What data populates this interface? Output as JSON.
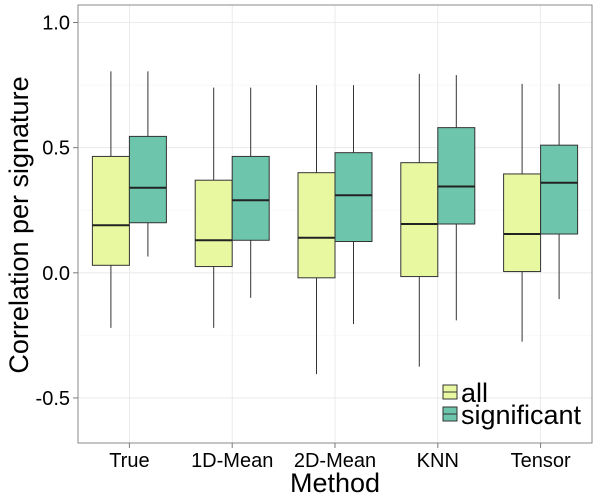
{
  "chart_data": {
    "type": "boxplot",
    "title": "",
    "xlabel": "Method",
    "ylabel": "Correlation per signature",
    "ylim": [
      -0.68,
      1.07
    ],
    "yticks": [
      -0.5,
      0.0,
      0.5,
      1.0
    ],
    "ytick_labels": [
      "-0.5",
      "0.0",
      "0.5",
      "1.0"
    ],
    "grid": true,
    "legend_position": "bottom-right inside",
    "categories": [
      "True",
      "1D-Mean",
      "2D-Mean",
      "KNN",
      "Tensor"
    ],
    "series": [
      {
        "name": "all",
        "color": "#e8f8a0",
        "boxes": [
          {
            "category": "True",
            "whisker_low": -0.22,
            "q1": 0.03,
            "median": 0.19,
            "q3": 0.465,
            "whisker_high": 0.805
          },
          {
            "category": "1D-Mean",
            "whisker_low": -0.22,
            "q1": 0.025,
            "median": 0.13,
            "q3": 0.37,
            "whisker_high": 0.74
          },
          {
            "category": "2D-Mean",
            "whisker_low": -0.405,
            "q1": -0.02,
            "median": 0.14,
            "q3": 0.4,
            "whisker_high": 0.75
          },
          {
            "category": "KNN",
            "whisker_low": -0.375,
            "q1": -0.015,
            "median": 0.195,
            "q3": 0.44,
            "whisker_high": 0.795
          },
          {
            "category": "Tensor",
            "whisker_low": -0.275,
            "q1": 0.005,
            "median": 0.155,
            "q3": 0.395,
            "whisker_high": 0.755
          }
        ]
      },
      {
        "name": "significant",
        "color": "#6dc5ab",
        "boxes": [
          {
            "category": "True",
            "whisker_low": 0.065,
            "q1": 0.2,
            "median": 0.34,
            "q3": 0.545,
            "whisker_high": 0.805
          },
          {
            "category": "1D-Mean",
            "whisker_low": -0.1,
            "q1": 0.13,
            "median": 0.29,
            "q3": 0.465,
            "whisker_high": 0.74
          },
          {
            "category": "2D-Mean",
            "whisker_low": -0.205,
            "q1": 0.125,
            "median": 0.31,
            "q3": 0.48,
            "whisker_high": 0.75
          },
          {
            "category": "KNN",
            "whisker_low": -0.19,
            "q1": 0.195,
            "median": 0.345,
            "q3": 0.58,
            "whisker_high": 0.79
          },
          {
            "category": "Tensor",
            "whisker_low": -0.105,
            "q1": 0.155,
            "median": 0.36,
            "q3": 0.51,
            "whisker_high": 0.755
          }
        ]
      }
    ]
  }
}
